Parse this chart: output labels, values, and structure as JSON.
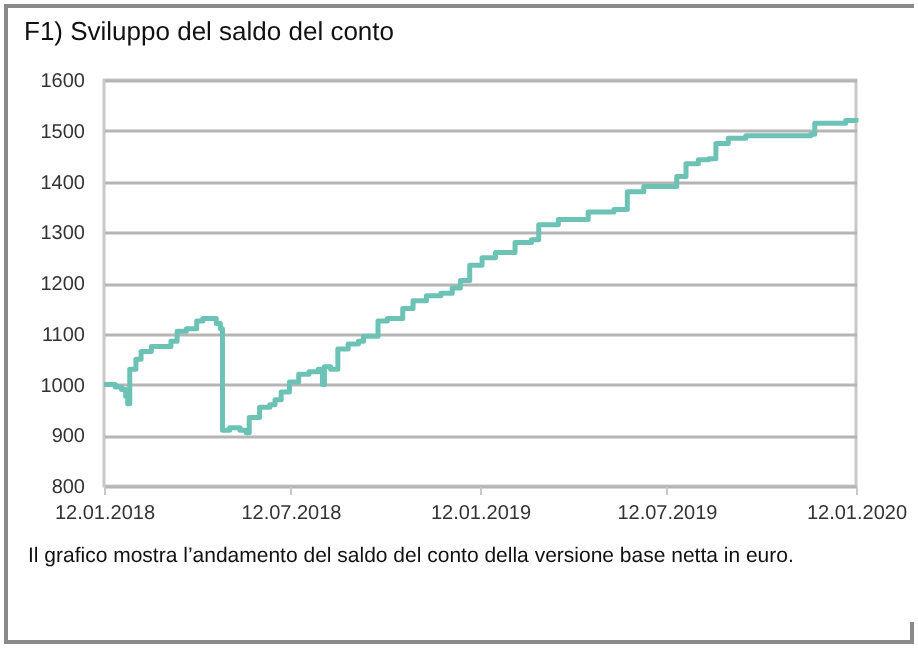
{
  "chart_data": {
    "type": "step",
    "title": "F1) Sviluppo del saldo del conto",
    "x": [
      "2018-01-12",
      "2018-01-23",
      "2018-01-29",
      "2018-02-02",
      "2018-02-04",
      "2018-02-06",
      "2018-02-12",
      "2018-02-17",
      "2018-02-27",
      "2018-03-12",
      "2018-03-18",
      "2018-03-24",
      "2018-04-02",
      "2018-04-12",
      "2018-04-18",
      "2018-04-25",
      "2018-05-01",
      "2018-05-05",
      "2018-05-07",
      "2018-05-14",
      "2018-05-24",
      "2018-05-30",
      "2018-06-02",
      "2018-06-12",
      "2018-06-22",
      "2018-06-27",
      "2018-07-03",
      "2018-07-11",
      "2018-07-20",
      "2018-07-30",
      "2018-08-08",
      "2018-08-12",
      "2018-08-14",
      "2018-08-20",
      "2018-08-27",
      "2018-09-06",
      "2018-09-16",
      "2018-09-21",
      "2018-10-01",
      "2018-10-05",
      "2018-10-14",
      "2018-10-24",
      "2018-10-29",
      "2018-11-08",
      "2018-11-21",
      "2018-12-05",
      "2018-12-16",
      "2018-12-24",
      "2019-01-02",
      "2019-01-14",
      "2019-01-27",
      "2019-02-10",
      "2019-02-15",
      "2019-03-03",
      "2019-03-10",
      "2019-03-29",
      "2019-04-27",
      "2019-05-22",
      "2019-06-04",
      "2019-06-20",
      "2019-07-18",
      "2019-07-22",
      "2019-07-31",
      "2019-08-12",
      "2019-08-22",
      "2019-08-29",
      "2019-09-10",
      "2019-09-27",
      "2019-11-29",
      "2019-12-03",
      "2020-01-02",
      "2020-01-12"
    ],
    "series": [
      {
        "color": "#6cc3b5",
        "values": [
          1000,
          995,
          990,
          977,
          962,
          1030,
          1050,
          1065,
          1075,
          1075,
          1085,
          1105,
          1110,
          1125,
          1130,
          1130,
          1120,
          1110,
          910,
          915,
          910,
          905,
          935,
          955,
          960,
          970,
          985,
          1005,
          1020,
          1025,
          1030,
          1000,
          1035,
          1030,
          1070,
          1080,
          1085,
          1095,
          1095,
          1125,
          1130,
          1130,
          1150,
          1165,
          1175,
          1180,
          1190,
          1205,
          1235,
          1250,
          1260,
          1260,
          1280,
          1285,
          1315,
          1325,
          1340,
          1345,
          1380,
          1390,
          1390,
          1410,
          1435,
          1443,
          1445,
          1475,
          1485,
          1490,
          1493,
          1515,
          1520,
          1525
        ]
      }
    ],
    "xlim": [
      "2018-01-12",
      "2020-01-12"
    ],
    "xticks": [
      {
        "value": "2018-01-12",
        "label": "12.01.2018"
      },
      {
        "value": "2018-07-12",
        "label": "12.07.2018"
      },
      {
        "value": "2019-01-12",
        "label": "12.01.2019"
      },
      {
        "value": "2019-07-12",
        "label": "12.07.2019"
      },
      {
        "value": "2020-01-12",
        "label": "12.01.2020"
      }
    ],
    "ylim": [
      800,
      1600
    ],
    "yticks": [
      800,
      900,
      1000,
      1100,
      1200,
      1300,
      1400,
      1500,
      1600
    ],
    "grid": "y",
    "annotations": [
      "Il grafico mostra l’andamento del saldo del conto della versione base netta in euro."
    ]
  }
}
